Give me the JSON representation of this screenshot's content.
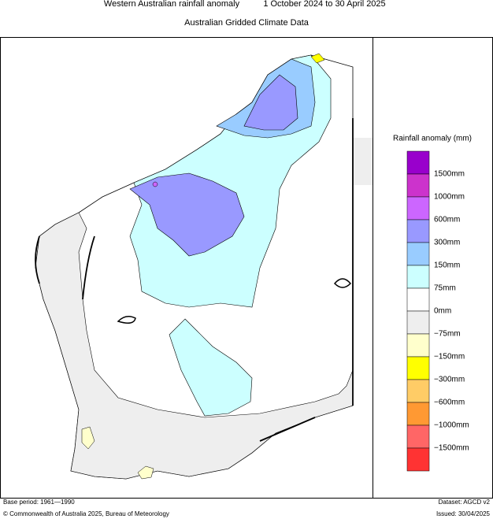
{
  "header": {
    "title": "Western Australian rainfall anomaly",
    "period": "1 October 2024 to 30 April 2025",
    "subtitle": "Australian Gridded Climate Data"
  },
  "legend": {
    "title": "Rainfall anomaly (mm)",
    "colors": [
      "#9900cc",
      "#cc33cc",
      "#cc66ff",
      "#9999ff",
      "#99ccff",
      "#ccffff",
      "#ffffff",
      "#eeeeee",
      "#ffffcc",
      "#ffff00",
      "#ffcc66",
      "#ff9933",
      "#ff6666",
      "#ff3333"
    ],
    "labels": [
      "1500mm",
      "1000mm",
      "600mm",
      "300mm",
      "150mm",
      "75mm",
      "0mm",
      "−75mm",
      "−150mm",
      "−300mm",
      "−600mm",
      "−1000mm",
      "−1500mm"
    ]
  },
  "footer": {
    "base_period": "Base period: 1961—1990",
    "dataset": "Dataset: AGCD v2",
    "copyright": "© Commonwealth of Australia 2025, Bureau of Meteorology",
    "issued": "Issued: 30/04/2025"
  }
}
